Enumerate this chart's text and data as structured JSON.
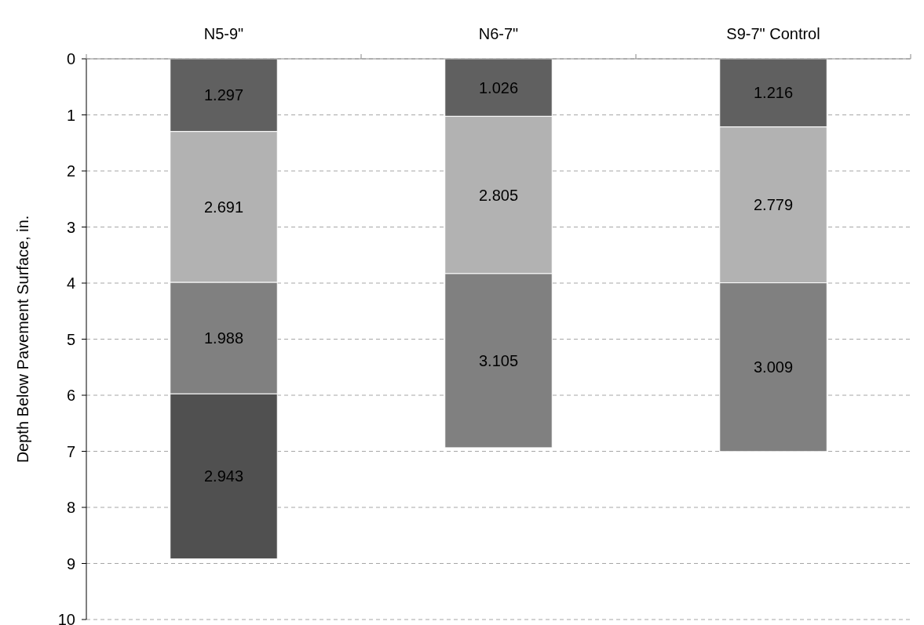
{
  "chart_data": {
    "type": "bar",
    "stacked": true,
    "ylabel": "Depth Below Pavement Surface, in.",
    "categories": [
      "N5-9\"",
      "N6-7\"",
      "S9-7\" Control"
    ],
    "series": [
      {
        "color": "#606060",
        "values": [
          1.297,
          1.026,
          1.216
        ]
      },
      {
        "color": "#b2b2b2",
        "values": [
          2.691,
          2.805,
          2.779
        ]
      },
      {
        "color": "#808080",
        "values": [
          1.988,
          3.105,
          3.009
        ]
      },
      {
        "color": "#505050",
        "values": [
          2.943,
          null,
          null
        ]
      }
    ],
    "ylim": [
      10,
      0
    ],
    "yticks": [
      0,
      1,
      2,
      3,
      4,
      5,
      6,
      7,
      8,
      9,
      10
    ],
    "grid": "y",
    "data_labels": true
  }
}
